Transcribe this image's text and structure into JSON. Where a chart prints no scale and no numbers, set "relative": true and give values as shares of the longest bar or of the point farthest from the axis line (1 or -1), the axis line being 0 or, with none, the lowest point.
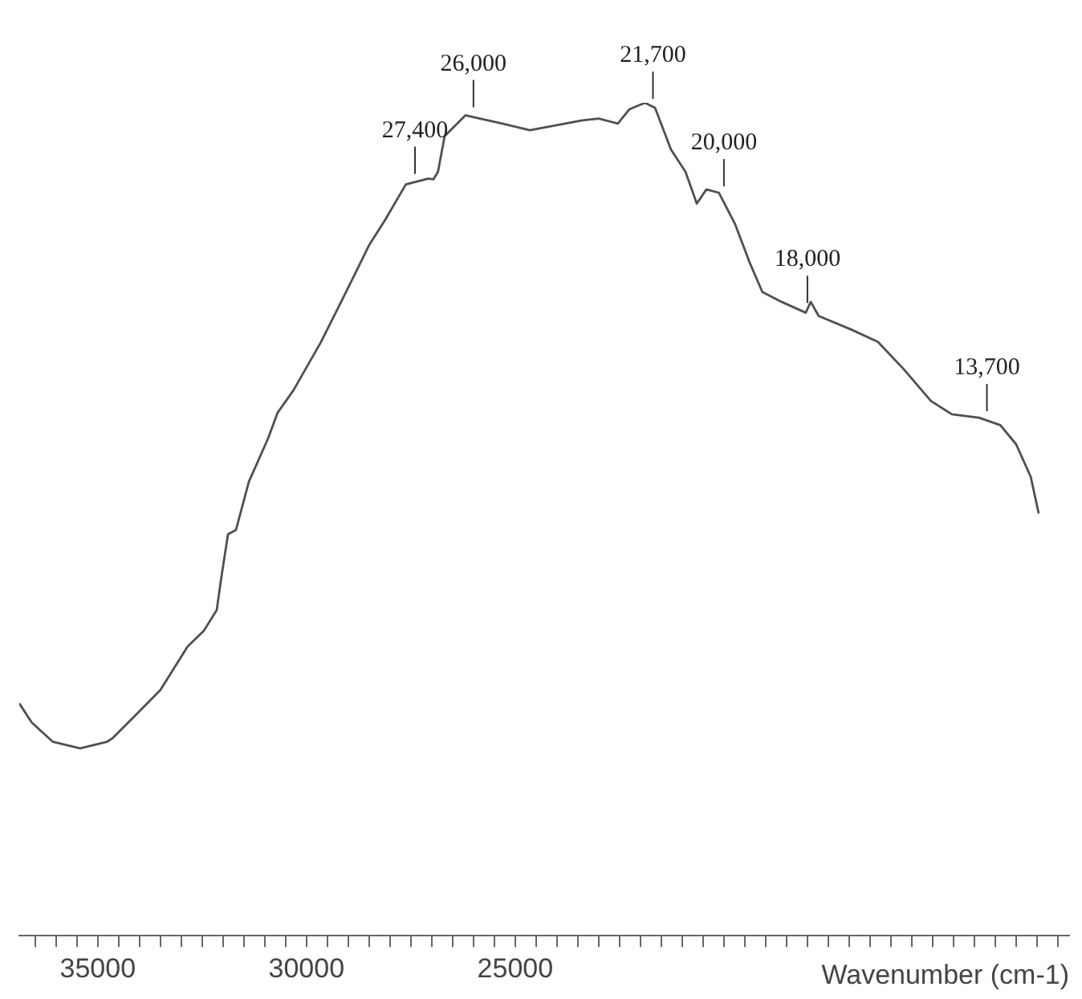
{
  "chart_data": {
    "type": "line",
    "xlabel": "Wavenumber (cm-1)",
    "relative": true,
    "marker": "none",
    "color": "#505050",
    "x": [
      36880,
      36580,
      36080,
      35420,
      34770,
      34650,
      34150,
      33500,
      32850,
      32460,
      32150,
      32040,
      31880,
      31690,
      31380,
      30920,
      30690,
      30310,
      29650,
      29150,
      28500,
      28120,
      27620,
      27080,
      26960,
      26850,
      26690,
      26190,
      25310,
      24650,
      23390,
      23000,
      22540,
      22270,
      21890,
      21650,
      21270,
      20920,
      20650,
      20420,
      20120,
      19730,
      19390,
      19080,
      18620,
      18040,
      17920,
      17730,
      16960,
      16310,
      15690,
      15040,
      14540,
      13890,
      13380,
      13000,
      12650,
      12460
    ],
    "values": [
      0.279,
      0.256,
      0.233,
      0.225,
      0.233,
      0.237,
      0.262,
      0.295,
      0.347,
      0.366,
      0.391,
      0.43,
      0.482,
      0.487,
      0.545,
      0.597,
      0.628,
      0.655,
      0.713,
      0.763,
      0.829,
      0.859,
      0.902,
      0.909,
      0.908,
      0.917,
      0.96,
      0.985,
      0.975,
      0.967,
      0.979,
      0.981,
      0.975,
      0.992,
      1,
      0.994,
      0.944,
      0.917,
      0.879,
      0.896,
      0.892,
      0.854,
      0.809,
      0.773,
      0.761,
      0.748,
      0.761,
      0.744,
      0.728,
      0.713,
      0.68,
      0.642,
      0.626,
      0.622,
      0.613,
      0.59,
      0.551,
      0.507
    ],
    "xlim": [
      36880,
      11730
    ],
    "xticks": [
      {
        "value": 36500,
        "label": null
      },
      {
        "value": 36000,
        "label": null
      },
      {
        "value": 35500,
        "label": null
      },
      35000,
      {
        "value": 34500,
        "label": null
      },
      {
        "value": 34000,
        "label": null
      },
      {
        "value": 33500,
        "label": null
      },
      {
        "value": 33000,
        "label": null
      },
      {
        "value": 32500,
        "label": null
      },
      {
        "value": 32000,
        "label": null
      },
      {
        "value": 31500,
        "label": null
      },
      {
        "value": 31000,
        "label": null
      },
      {
        "value": 30500,
        "label": null
      },
      30000,
      {
        "value": 29500,
        "label": null
      },
      {
        "value": 29000,
        "label": null
      },
      {
        "value": 28500,
        "label": null
      },
      {
        "value": 28000,
        "label": null
      },
      {
        "value": 27500,
        "label": null
      },
      {
        "value": 27000,
        "label": null
      },
      {
        "value": 26500,
        "label": null
      },
      {
        "value": 26000,
        "label": null
      },
      {
        "value": 25500,
        "label": null
      },
      25000,
      {
        "value": 24500,
        "label": null
      },
      {
        "value": 24000,
        "label": null
      },
      {
        "value": 23500,
        "label": null
      },
      {
        "value": 23000,
        "label": null
      },
      {
        "value": 22500,
        "label": null
      },
      {
        "value": 22000,
        "label": null
      },
      {
        "value": 21500,
        "label": null
      },
      {
        "value": 21000,
        "label": null
      },
      {
        "value": 20500,
        "label": null
      },
      {
        "value": 20000,
        "label": null
      },
      {
        "value": 19500,
        "label": null
      },
      {
        "value": 19000,
        "label": null
      },
      {
        "value": 18500,
        "label": null
      },
      {
        "value": 18000,
        "label": null
      },
      {
        "value": 17500,
        "label": null
      },
      {
        "value": 17000,
        "label": null
      },
      {
        "value": 16500,
        "label": null
      },
      {
        "value": 16000,
        "label": null
      },
      {
        "value": 15500,
        "label": null
      },
      {
        "value": 15000,
        "label": null
      },
      {
        "value": 14500,
        "label": null
      },
      {
        "value": 14000,
        "label": null
      },
      {
        "value": 13500,
        "label": null
      },
      {
        "value": 13000,
        "label": null
      },
      {
        "value": 12500,
        "label": null
      },
      {
        "value": 12000,
        "label": null
      }
    ],
    "annotations": [
      {
        "text": "27,400",
        "x": 27400,
        "y": 0.905
      },
      {
        "text": "26,000",
        "x": 26000,
        "y": 0.985
      },
      {
        "text": "21,700",
        "x": 21700,
        "y": 0.995
      },
      {
        "text": "20,000",
        "x": 20000,
        "y": 0.89
      },
      {
        "text": "18,000",
        "x": 18000,
        "y": 0.75
      },
      {
        "text": "13,700",
        "x": 13700,
        "y": 0.62
      }
    ]
  }
}
